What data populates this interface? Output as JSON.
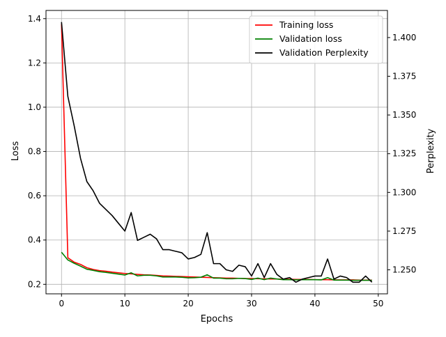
{
  "chart_data": {
    "type": "line",
    "title": "",
    "xlabel": "Epochs",
    "ylabel_left": "Loss",
    "ylabel_right": "Perplexity",
    "xlim": [
      -2.45,
      51.45
    ],
    "ylim_left": [
      0.157,
      1.437
    ],
    "ylim_right": [
      1.2345,
      1.4175
    ],
    "xticks": [
      0,
      10,
      20,
      30,
      40,
      50
    ],
    "yticks_left": [
      0.2,
      0.4,
      0.6,
      0.8,
      1.0,
      1.2,
      1.4
    ],
    "yticks_left_labels": [
      "0.2",
      "0.4",
      "0.6",
      "0.8",
      "1.0",
      "1.2",
      "1.4"
    ],
    "yticks_right": [
      1.25,
      1.275,
      1.3,
      1.325,
      1.35,
      1.375,
      1.4
    ],
    "yticks_right_labels": [
      "1.250",
      "1.275",
      "1.300",
      "1.325",
      "1.350",
      "1.375",
      "1.400"
    ],
    "grid": true,
    "legend_position": "top-right",
    "x": [
      0,
      1,
      2,
      3,
      4,
      5,
      6,
      7,
      8,
      9,
      10,
      11,
      12,
      13,
      14,
      15,
      16,
      17,
      18,
      19,
      20,
      21,
      22,
      23,
      24,
      25,
      26,
      27,
      28,
      29,
      30,
      31,
      32,
      33,
      34,
      35,
      36,
      37,
      38,
      39,
      40,
      41,
      42,
      43,
      44,
      45,
      46,
      47,
      48,
      49
    ],
    "series": [
      {
        "name": "Training loss",
        "axis": "left",
        "color": "#ff0000",
        "values": [
          1.375,
          0.32,
          0.3,
          0.29,
          0.275,
          0.267,
          0.262,
          0.259,
          0.255,
          0.252,
          0.249,
          0.247,
          0.245,
          0.243,
          0.242,
          0.24,
          0.238,
          0.237,
          0.236,
          0.235,
          0.234,
          0.233,
          0.232,
          0.231,
          0.23,
          0.229,
          0.228,
          0.228,
          0.227,
          0.226,
          0.226,
          0.225,
          0.225,
          0.224,
          0.224,
          0.223,
          0.223,
          0.222,
          0.222,
          0.222,
          0.221,
          0.221,
          0.221,
          0.22,
          0.22,
          0.22,
          0.22,
          0.219,
          0.219,
          0.219
        ]
      },
      {
        "name": "Validation loss",
        "axis": "left",
        "color": "#008000",
        "values": [
          0.345,
          0.31,
          0.295,
          0.282,
          0.268,
          0.263,
          0.257,
          0.254,
          0.25,
          0.246,
          0.242,
          0.252,
          0.238,
          0.241,
          0.241,
          0.238,
          0.233,
          0.233,
          0.233,
          0.232,
          0.229,
          0.23,
          0.232,
          0.243,
          0.228,
          0.228,
          0.225,
          0.225,
          0.227,
          0.226,
          0.222,
          0.228,
          0.221,
          0.228,
          0.224,
          0.221,
          0.221,
          0.22,
          0.221,
          0.221,
          0.221,
          0.22,
          0.23,
          0.219,
          0.219,
          0.219,
          0.218,
          0.218,
          0.218,
          0.218
        ]
      },
      {
        "name": "Validation Perplexity",
        "axis": "right",
        "color": "#000000",
        "values": [
          1.41,
          1.362,
          1.343,
          1.322,
          1.307,
          1.301,
          1.293,
          1.289,
          1.285,
          1.28,
          1.275,
          1.287,
          1.269,
          1.271,
          1.273,
          1.27,
          1.263,
          1.263,
          1.262,
          1.261,
          1.257,
          1.258,
          1.26,
          1.274,
          1.254,
          1.254,
          1.25,
          1.249,
          1.253,
          1.252,
          1.246,
          1.254,
          1.245,
          1.254,
          1.247,
          1.244,
          1.245,
          1.242,
          1.244,
          1.245,
          1.246,
          1.246,
          1.257,
          1.244,
          1.246,
          1.245,
          1.242,
          1.242,
          1.246,
          1.242
        ]
      }
    ]
  }
}
